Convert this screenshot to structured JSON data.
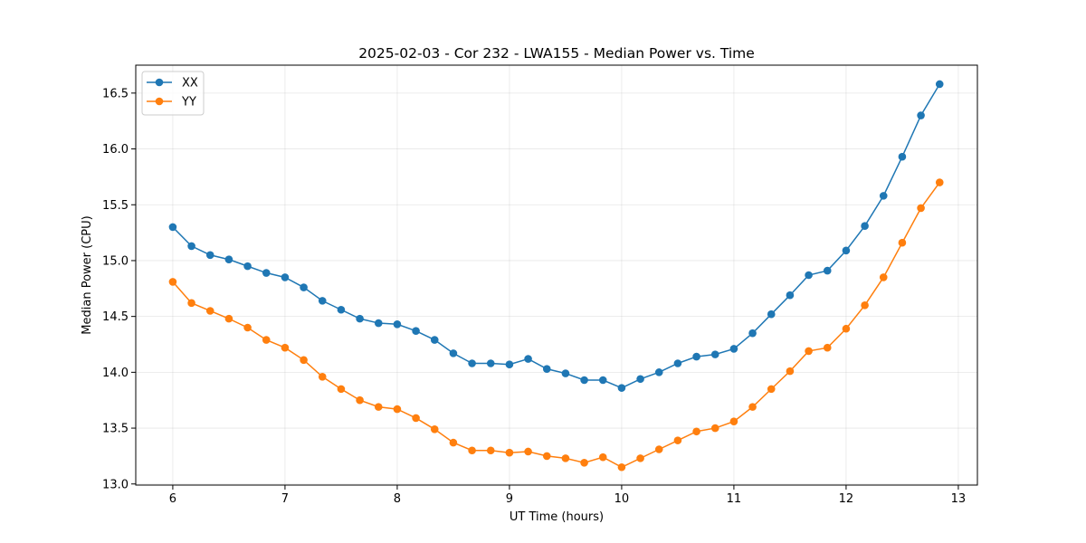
{
  "chart_data": {
    "type": "line",
    "title": "2025-02-03 - Cor 232 - LWA155 - Median Power vs. Time",
    "xlabel": "UT Time (hours)",
    "ylabel": "Median Power (CPU)",
    "xlim": [
      5.67,
      13.17
    ],
    "ylim": [
      12.99,
      16.75
    ],
    "xticks": [
      6,
      7,
      8,
      9,
      10,
      11,
      12,
      13
    ],
    "yticks": [
      13.0,
      13.5,
      14.0,
      14.5,
      15.0,
      15.5,
      16.0,
      16.5
    ],
    "ytick_labels": [
      "13.0",
      "13.5",
      "14.0",
      "14.5",
      "15.0",
      "15.5",
      "16.0",
      "16.5"
    ],
    "grid": true,
    "legend_position": "top-left",
    "x": [
      6.0,
      6.1667,
      6.3333,
      6.5,
      6.6667,
      6.8333,
      7.0,
      7.1667,
      7.3333,
      7.5,
      7.6667,
      7.8333,
      8.0,
      8.1667,
      8.3333,
      8.5,
      8.6667,
      8.8333,
      9.0,
      9.1667,
      9.3333,
      9.5,
      9.6667,
      9.8333,
      10.0,
      10.1667,
      10.3333,
      10.5,
      10.6667,
      10.8333,
      11.0,
      11.1667,
      11.3333,
      11.5,
      11.6667,
      11.8333,
      12.0,
      12.1667,
      12.3333,
      12.5,
      12.6667,
      12.8333
    ],
    "series": [
      {
        "name": "XX",
        "color": "#1f77b4",
        "values": [
          15.3,
          15.13,
          15.05,
          15.01,
          14.95,
          14.89,
          14.85,
          14.76,
          14.64,
          14.56,
          14.48,
          14.44,
          14.43,
          14.37,
          14.29,
          14.17,
          14.08,
          14.08,
          14.07,
          14.12,
          14.03,
          13.99,
          13.93,
          13.93,
          13.86,
          13.94,
          14.0,
          14.08,
          14.14,
          14.16,
          14.21,
          14.35,
          14.52,
          14.69,
          14.87,
          14.91,
          15.09,
          15.31,
          15.58,
          15.93,
          16.3,
          16.58
        ]
      },
      {
        "name": "YY",
        "color": "#ff7f0e",
        "values": [
          14.81,
          14.62,
          14.55,
          14.48,
          14.4,
          14.29,
          14.22,
          14.11,
          13.96,
          13.85,
          13.75,
          13.69,
          13.67,
          13.59,
          13.49,
          13.37,
          13.3,
          13.3,
          13.28,
          13.29,
          13.25,
          13.23,
          13.19,
          13.24,
          13.15,
          13.23,
          13.31,
          13.39,
          13.47,
          13.5,
          13.56,
          13.69,
          13.85,
          14.01,
          14.19,
          14.22,
          14.39,
          14.6,
          14.85,
          15.16,
          15.47,
          15.7
        ]
      }
    ]
  }
}
